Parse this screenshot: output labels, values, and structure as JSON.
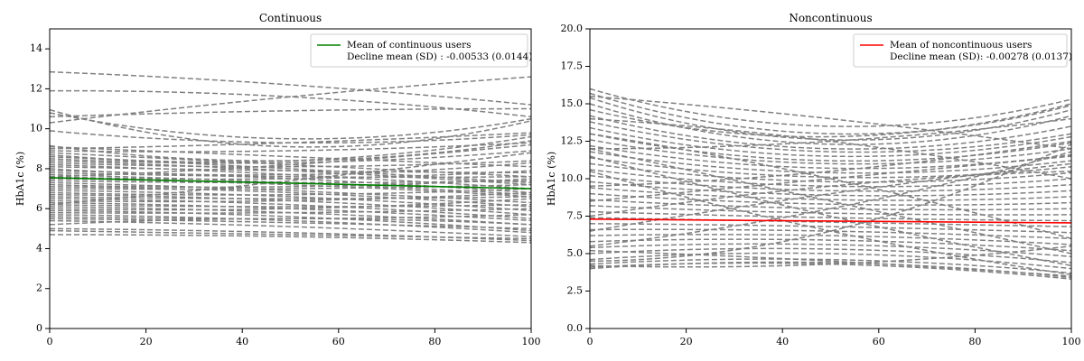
{
  "chart_data": [
    {
      "type": "line",
      "title": "Continuous",
      "xlabel": "",
      "ylabel": "HbA1c (%)",
      "xlim": [
        0,
        100
      ],
      "ylim": [
        0,
        15
      ],
      "xticks": [
        0,
        20,
        40,
        60,
        80,
        100
      ],
      "yticks": [
        0,
        2,
        4,
        6,
        8,
        10,
        12,
        14
      ],
      "ytick_labels": [
        "0",
        "2",
        "4",
        "6",
        "8",
        "10",
        "12",
        "14"
      ],
      "legend": {
        "placement": "top-right",
        "entries": [
          "Mean of continuous users",
          "Decline mean (SD) : -0.00533 (0.0144)"
        ]
      },
      "mean_line": {
        "color": "#008000",
        "x": [
          0,
          100
        ],
        "y": [
          7.55,
          7.0
        ]
      },
      "individual_trend_color": "#808080",
      "individual_trends": [
        [
          12.85,
          12.2,
          11.2
        ],
        [
          11.9,
          11.6,
          10.6
        ],
        [
          10.3,
          11.6,
          12.6
        ],
        [
          10.6,
          10.9,
          11.0
        ],
        [
          10.95,
          9.1,
          10.4
        ],
        [
          10.8,
          9.5,
          10.5
        ],
        [
          9.9,
          9.3,
          9.7
        ],
        [
          9.15,
          8.4,
          9.4
        ],
        [
          9.1,
          8.6,
          8.1
        ],
        [
          8.9,
          8.9,
          9.3
        ],
        [
          8.8,
          8.2,
          7.6
        ],
        [
          8.7,
          8.4,
          9.6
        ],
        [
          8.6,
          8.0,
          7.3
        ],
        [
          8.5,
          8.3,
          8.9
        ],
        [
          8.4,
          7.9,
          7.2
        ],
        [
          8.3,
          8.1,
          8.4
        ],
        [
          8.2,
          7.7,
          7.0
        ],
        [
          8.1,
          7.9,
          7.8
        ],
        [
          8.0,
          7.7,
          8.3
        ],
        [
          7.9,
          7.5,
          6.8
        ],
        [
          7.8,
          7.6,
          7.6
        ],
        [
          7.7,
          7.3,
          6.7
        ],
        [
          7.6,
          7.5,
          7.9
        ],
        [
          7.5,
          7.2,
          6.6
        ],
        [
          7.4,
          7.3,
          7.4
        ],
        [
          7.3,
          6.9,
          6.3
        ],
        [
          7.2,
          7.1,
          7.5
        ],
        [
          7.1,
          6.8,
          6.1
        ],
        [
          7.0,
          7.0,
          7.2
        ],
        [
          6.9,
          6.6,
          5.9
        ],
        [
          6.8,
          6.7,
          7.0
        ],
        [
          6.7,
          6.4,
          5.7
        ],
        [
          6.6,
          6.5,
          6.6
        ],
        [
          6.5,
          6.2,
          5.5
        ],
        [
          6.4,
          6.4,
          6.8
        ],
        [
          6.3,
          6.0,
          5.4
        ],
        [
          6.2,
          6.1,
          6.2
        ],
        [
          6.1,
          5.8,
          5.2
        ],
        [
          6.0,
          6.0,
          6.5
        ],
        [
          5.9,
          5.6,
          4.9
        ],
        [
          5.8,
          5.8,
          6.0
        ],
        [
          5.7,
          5.4,
          4.8
        ],
        [
          5.6,
          5.5,
          5.7
        ],
        [
          5.5,
          5.3,
          5.0
        ],
        [
          5.4,
          5.1,
          4.6
        ],
        [
          5.0,
          4.8,
          4.4
        ],
        [
          4.9,
          4.7,
          4.5
        ],
        [
          4.7,
          4.6,
          4.3
        ],
        [
          9.0,
          9.3,
          9.8
        ],
        [
          7.6,
          8.2,
          9.2
        ],
        [
          6.2,
          7.4,
          8.8
        ],
        [
          5.2,
          5.5,
          5.2
        ]
      ]
    },
    {
      "type": "line",
      "title": "Noncontinuous",
      "xlabel": "",
      "ylabel": "HbA1c (%)",
      "xlim": [
        0,
        100
      ],
      "ylim": [
        0,
        20
      ],
      "xticks": [
        0,
        20,
        40,
        60,
        80,
        100
      ],
      "yticks": [
        0,
        2.5,
        5,
        7.5,
        10,
        12.5,
        15,
        17.5,
        20
      ],
      "ytick_labels": [
        "0.0",
        "2.5",
        "5.0",
        "7.5",
        "10.0",
        "12.5",
        "15.0",
        "17.5",
        "20.0"
      ],
      "legend": {
        "placement": "top-right",
        "entries": [
          "Mean of noncontinuous users",
          "Decline mean (SD): -0.00278 (0.0137)"
        ]
      },
      "mean_line": {
        "color": "#ff0000",
        "x": [
          0,
          100
        ],
        "y": [
          7.3,
          7.05
        ]
      },
      "individual_trend_color": "#808080",
      "individual_trends": [
        [
          16.0,
          13.5,
          15.3
        ],
        [
          15.7,
          13.0,
          14.9
        ],
        [
          15.4,
          12.6,
          14.6
        ],
        [
          15.0,
          12.3,
          14.2
        ],
        [
          14.6,
          12.8,
          15.0
        ],
        [
          14.2,
          12.0,
          13.5
        ],
        [
          13.8,
          11.8,
          13.0
        ],
        [
          13.4,
          11.5,
          12.8
        ],
        [
          13.0,
          11.2,
          12.4
        ],
        [
          12.6,
          11.0,
          12.0
        ],
        [
          12.2,
          10.7,
          11.6
        ],
        [
          11.8,
          10.4,
          11.2
        ],
        [
          11.4,
          10.1,
          10.8
        ],
        [
          11.0,
          9.8,
          10.4
        ],
        [
          10.6,
          9.5,
          10.0
        ],
        [
          10.2,
          9.2,
          9.6
        ],
        [
          9.8,
          8.9,
          9.2
        ],
        [
          9.4,
          8.6,
          8.8
        ],
        [
          9.0,
          8.3,
          8.4
        ],
        [
          8.6,
          8.0,
          8.0
        ],
        [
          8.2,
          7.7,
          7.6
        ],
        [
          7.8,
          7.4,
          7.2
        ],
        [
          7.4,
          7.1,
          6.8
        ],
        [
          7.0,
          6.8,
          6.4
        ],
        [
          6.6,
          6.5,
          6.0
        ],
        [
          6.2,
          6.2,
          5.6
        ],
        [
          5.8,
          5.9,
          5.2
        ],
        [
          5.4,
          5.6,
          4.8
        ],
        [
          5.0,
          5.3,
          4.4
        ],
        [
          4.6,
          5.0,
          4.0
        ],
        [
          4.3,
          4.6,
          3.7
        ],
        [
          4.0,
          4.4,
          3.4
        ],
        [
          4.1,
          4.3,
          3.3
        ],
        [
          4.5,
          6.5,
          12.3
        ],
        [
          5.5,
          8.0,
          11.8
        ],
        [
          6.5,
          9.0,
          11.0
        ],
        [
          12.0,
          8.5,
          5.0
        ],
        [
          11.5,
          7.5,
          4.2
        ],
        [
          10.5,
          6.5,
          3.6
        ],
        [
          9.5,
          10.5,
          12.5
        ],
        [
          8.5,
          10.0,
          11.5
        ],
        [
          7.5,
          9.5,
          10.5
        ],
        [
          13.0,
          10.0,
          6.0
        ],
        [
          14.0,
          12.5,
          10.0
        ],
        [
          15.5,
          14.0,
          12.0
        ],
        [
          12.0,
          12.5,
          14.0
        ],
        [
          4.2,
          4.3,
          5.5
        ],
        [
          5.2,
          4.5,
          3.5
        ]
      ]
    }
  ]
}
